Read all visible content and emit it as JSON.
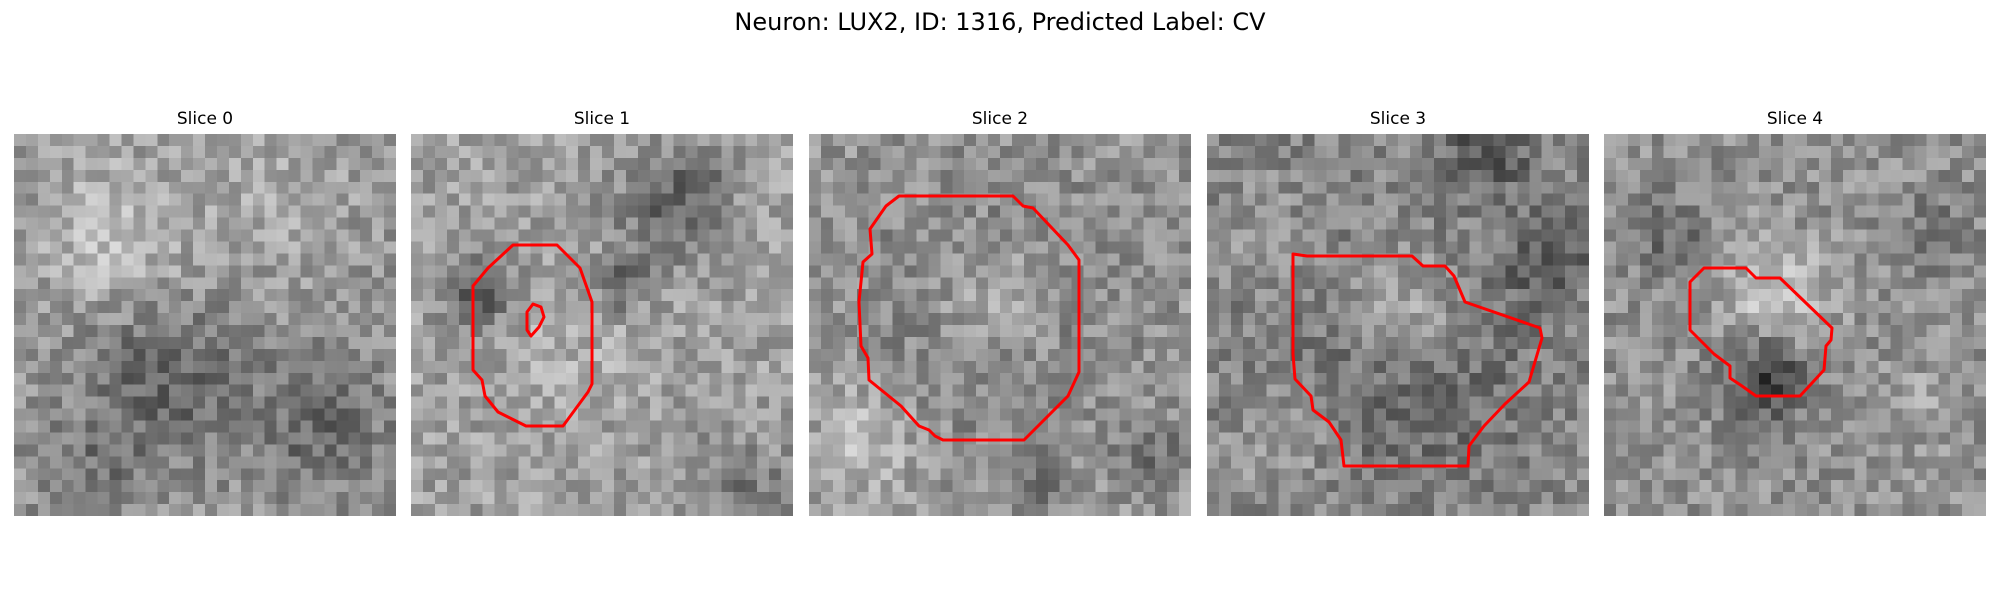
{
  "figure": {
    "title": "Neuron: LUX2, ID: 1316, Predicted Label: CV",
    "contour_color": "#ff0000",
    "colormap": "gray"
  },
  "slices": [
    {
      "title": "Slice 0"
    },
    {
      "title": "Slice 1"
    },
    {
      "title": "Slice 2"
    },
    {
      "title": "Slice 3"
    },
    {
      "title": "Slice 4"
    }
  ]
}
